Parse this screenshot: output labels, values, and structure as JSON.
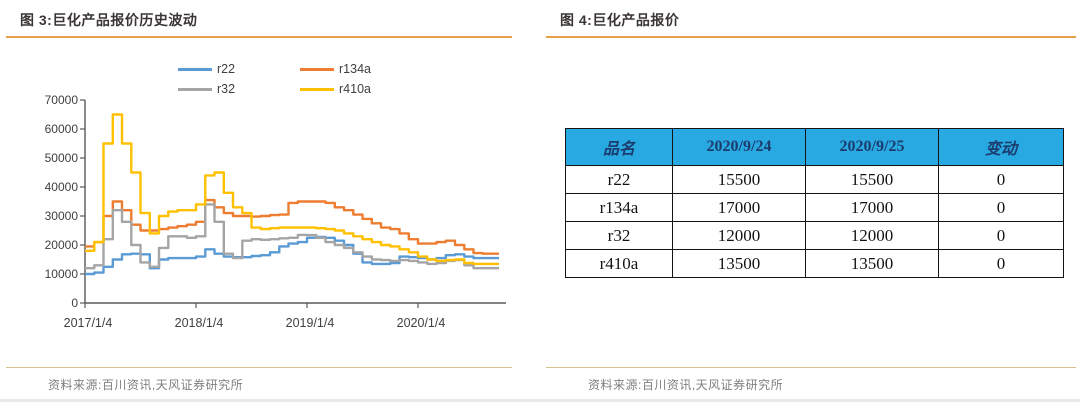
{
  "figure3": {
    "title": "图 3:巨化产品报价历史波动",
    "source": "资料来源:百川资讯,天风证券研究所"
  },
  "figure4": {
    "title": "图 4:巨化产品报价",
    "source": "资料来源:百川资讯,天风证券研究所",
    "table": {
      "columns": [
        "品名",
        "2020/9/24",
        "2020/9/25",
        "变动"
      ],
      "rows": [
        [
          "r22",
          "15500",
          "15500",
          "0"
        ],
        [
          "r134a",
          "17000",
          "17000",
          "0"
        ],
        [
          "r32",
          "12000",
          "12000",
          "0"
        ],
        [
          "r410a",
          "13500",
          "13500",
          "0"
        ]
      ],
      "header_bg": "#29a9e1",
      "header_text_color": "#1b3c6e",
      "border_color": "#141414"
    }
  },
  "chart_data": {
    "type": "line",
    "title": "巨化产品报价历史波动",
    "xlabel": "",
    "ylabel": "",
    "x_unit": "monthly, from 2017/1 to 2020/9",
    "x_tick_labels": [
      "2017/1/4",
      "2018/1/4",
      "2019/1/4",
      "2020/1/4"
    ],
    "x_tick_month_index": [
      0,
      12,
      24,
      36
    ],
    "y_ticks": [
      0,
      10000,
      20000,
      30000,
      40000,
      50000,
      60000,
      70000
    ],
    "ylim": [
      0,
      70000
    ],
    "grid": false,
    "legend_position": "top",
    "legend_order": [
      "r22",
      "r134a",
      "r32",
      "r410a"
    ],
    "line_style": "step-after",
    "series": [
      {
        "name": "r22",
        "color": "#5B9BD5",
        "values": [
          10000,
          10500,
          12500,
          15000,
          16800,
          17000,
          16800,
          12000,
          15000,
          15500,
          15500,
          15500,
          16000,
          18500,
          17000,
          16000,
          15800,
          15800,
          16200,
          16500,
          17500,
          19500,
          20500,
          21000,
          22500,
          22800,
          22500,
          21500,
          20000,
          17000,
          14000,
          13500,
          13500,
          13800,
          16000,
          15800,
          15500,
          15000,
          15500,
          16500,
          16800,
          16000,
          15500,
          15500,
          15500
        ]
      },
      {
        "name": "r134a",
        "color": "#ED7D31",
        "values": [
          19500,
          21000,
          30000,
          35000,
          32000,
          27000,
          25000,
          25000,
          25500,
          26000,
          26500,
          27000,
          28000,
          35500,
          33000,
          31000,
          30000,
          30000,
          29800,
          30000,
          30300,
          30500,
          34500,
          35000,
          35000,
          35000,
          34500,
          33000,
          32000,
          30500,
          29000,
          27500,
          26000,
          25500,
          24000,
          22000,
          20500,
          20500,
          21000,
          21500,
          20000,
          18500,
          17200,
          17000,
          17000
        ]
      },
      {
        "name": "r32",
        "color": "#A5A5A5",
        "values": [
          12000,
          13000,
          22000,
          32000,
          28000,
          20000,
          14000,
          12500,
          19000,
          23000,
          23000,
          22500,
          23000,
          34000,
          28000,
          17000,
          15500,
          21500,
          22000,
          21800,
          22000,
          22300,
          22500,
          23500,
          23400,
          22500,
          21000,
          20000,
          19000,
          17500,
          16000,
          15000,
          14800,
          14500,
          14800,
          14500,
          14000,
          13500,
          13800,
          14500,
          14800,
          13000,
          12000,
          12000,
          12000
        ]
      },
      {
        "name": "r410a",
        "color": "#FFC000",
        "values": [
          18000,
          21000,
          55000,
          65000,
          55000,
          45000,
          31000,
          24000,
          30000,
          31500,
          32000,
          32000,
          34000,
          44000,
          45000,
          38000,
          33000,
          31000,
          26000,
          25500,
          25800,
          26000,
          26000,
          26000,
          26000,
          25800,
          25500,
          25000,
          24000,
          23000,
          22000,
          21000,
          20000,
          19500,
          18500,
          17500,
          16000,
          15000,
          14500,
          14800,
          15000,
          13800,
          13500,
          13500,
          13500
        ]
      }
    ]
  },
  "colors": {
    "accent_rule": "#e8a04a",
    "footer_rule": "#d9c08c",
    "axis_line": "#595959",
    "axis_text": "#404040",
    "title_text": "#3b3535",
    "footer_text": "#7f7f7f"
  }
}
